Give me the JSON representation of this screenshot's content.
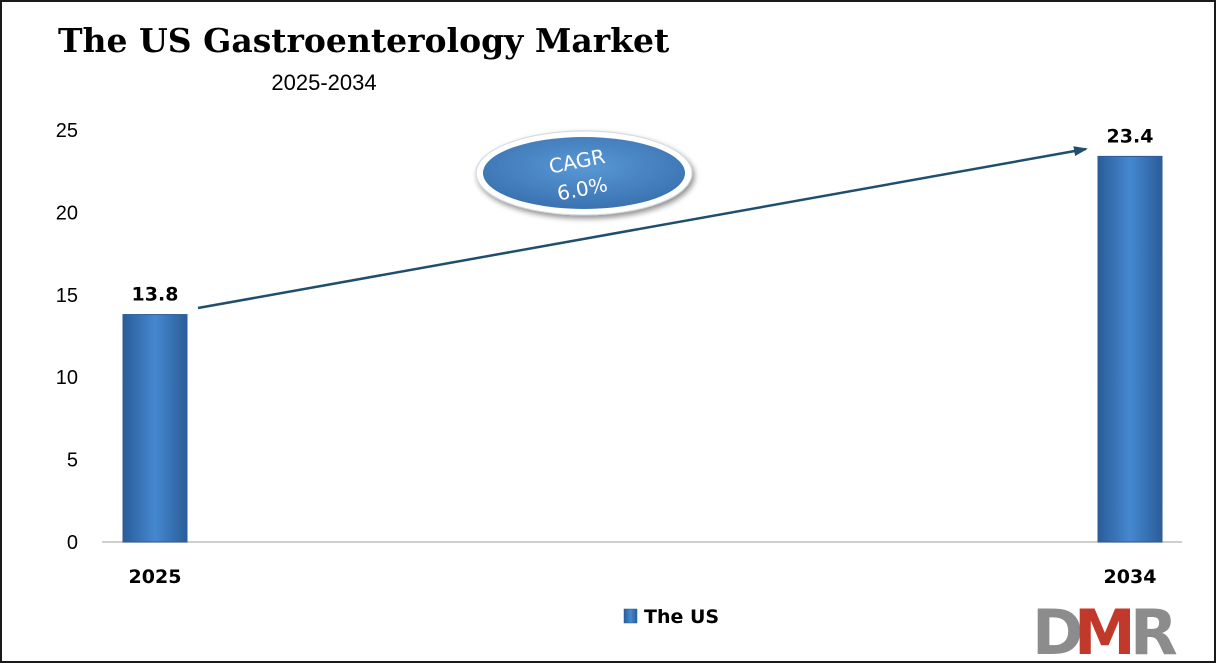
{
  "chart_data": {
    "type": "bar",
    "title": "The US Gastroenterology Market",
    "subtitle": "2025-2034",
    "categories": [
      "2025",
      "2034"
    ],
    "series": [
      {
        "name": "The US",
        "values": [
          13.8,
          23.4
        ],
        "labels": [
          "13.8",
          "23.4"
        ]
      }
    ],
    "ylim": [
      0,
      25
    ],
    "yticks": [
      0,
      5,
      10,
      15,
      20,
      25
    ],
    "ytick_labels": [
      "0",
      "5",
      "10",
      "15",
      "20",
      "25"
    ],
    "grid": false,
    "legend_position": "bottom",
    "annotation": {
      "line1": "CAGR",
      "line2": "6.0%"
    },
    "colors": {
      "bar": "#3a78c2",
      "bar_dark": "#2a5d99",
      "arrow": "#1f4e6e",
      "ellipse": "#4a88c8"
    }
  },
  "logo": {
    "text_d": "D",
    "text_m": "M",
    "text_r": "R",
    "colors": {
      "d": "#8c8c8c",
      "m": "#c0392b",
      "r": "#8c8c8c"
    }
  }
}
